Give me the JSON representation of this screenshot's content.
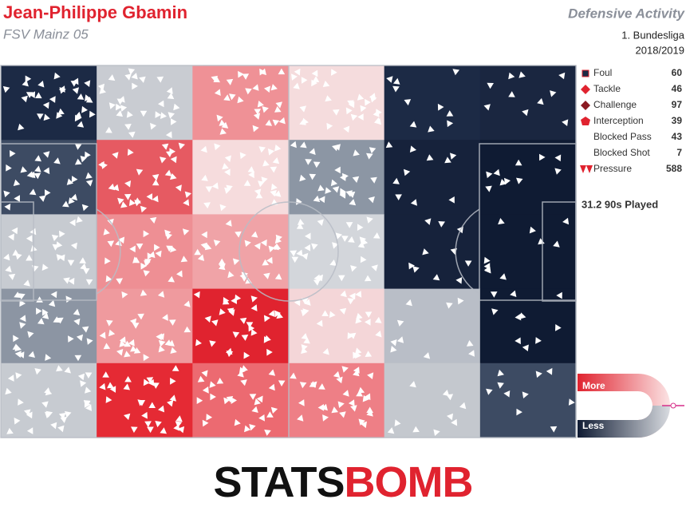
{
  "chart_data": {
    "type": "heatmap",
    "title": "Jean-Philippe Gbamin",
    "subtitle": "FSV Mainz 05",
    "chart_label": "Defensive Activity",
    "competition": "1. Bundesliga",
    "season": "2018/2019",
    "cell_colors": [
      [
        "#1c2a45",
        "#c9ccd2",
        "#ef9196",
        "#f5dcdd",
        "#1c2a45",
        "#1a2640"
      ],
      [
        "#3d4b63",
        "#e65a62",
        "#f6dcdd",
        "#8c96a4",
        "#16223b",
        "#0f1b33"
      ],
      [
        "#c7cbd1",
        "#ee8f94",
        "#f0a3a7",
        "#d3d6db",
        "#16223b",
        "#0f1b33"
      ],
      [
        "#8c95a3",
        "#ef9a9e",
        "#e0232f",
        "#f4d6d8",
        "#b9bec7",
        "#0f1b33"
      ],
      [
        "#c7cbd1",
        "#e52a34",
        "#ec6a71",
        "#ee7f86",
        "#c4c8ce",
        "#3d4b63"
      ]
    ],
    "series": [
      {
        "name": "Foul",
        "value": 60,
        "color": "#1c2a45"
      },
      {
        "name": "Tackle",
        "value": 46,
        "color": "#e0232f"
      },
      {
        "name": "Challenge",
        "value": 97,
        "color": "#8b1a22"
      },
      {
        "name": "Interception",
        "value": 39,
        "color": "#e0232f"
      },
      {
        "name": "Blocked Pass",
        "value": 43,
        "color": "#8b1a22"
      },
      {
        "name": "Blocked Shot",
        "value": 7,
        "color": "#f07ac8"
      },
      {
        "name": "Pressure",
        "value": 588,
        "color": "#e0232f"
      }
    ],
    "played": "31.2 90s Played",
    "scale_high": "More",
    "scale_low": "Less",
    "logo": [
      "STATS",
      "BOMB"
    ]
  }
}
